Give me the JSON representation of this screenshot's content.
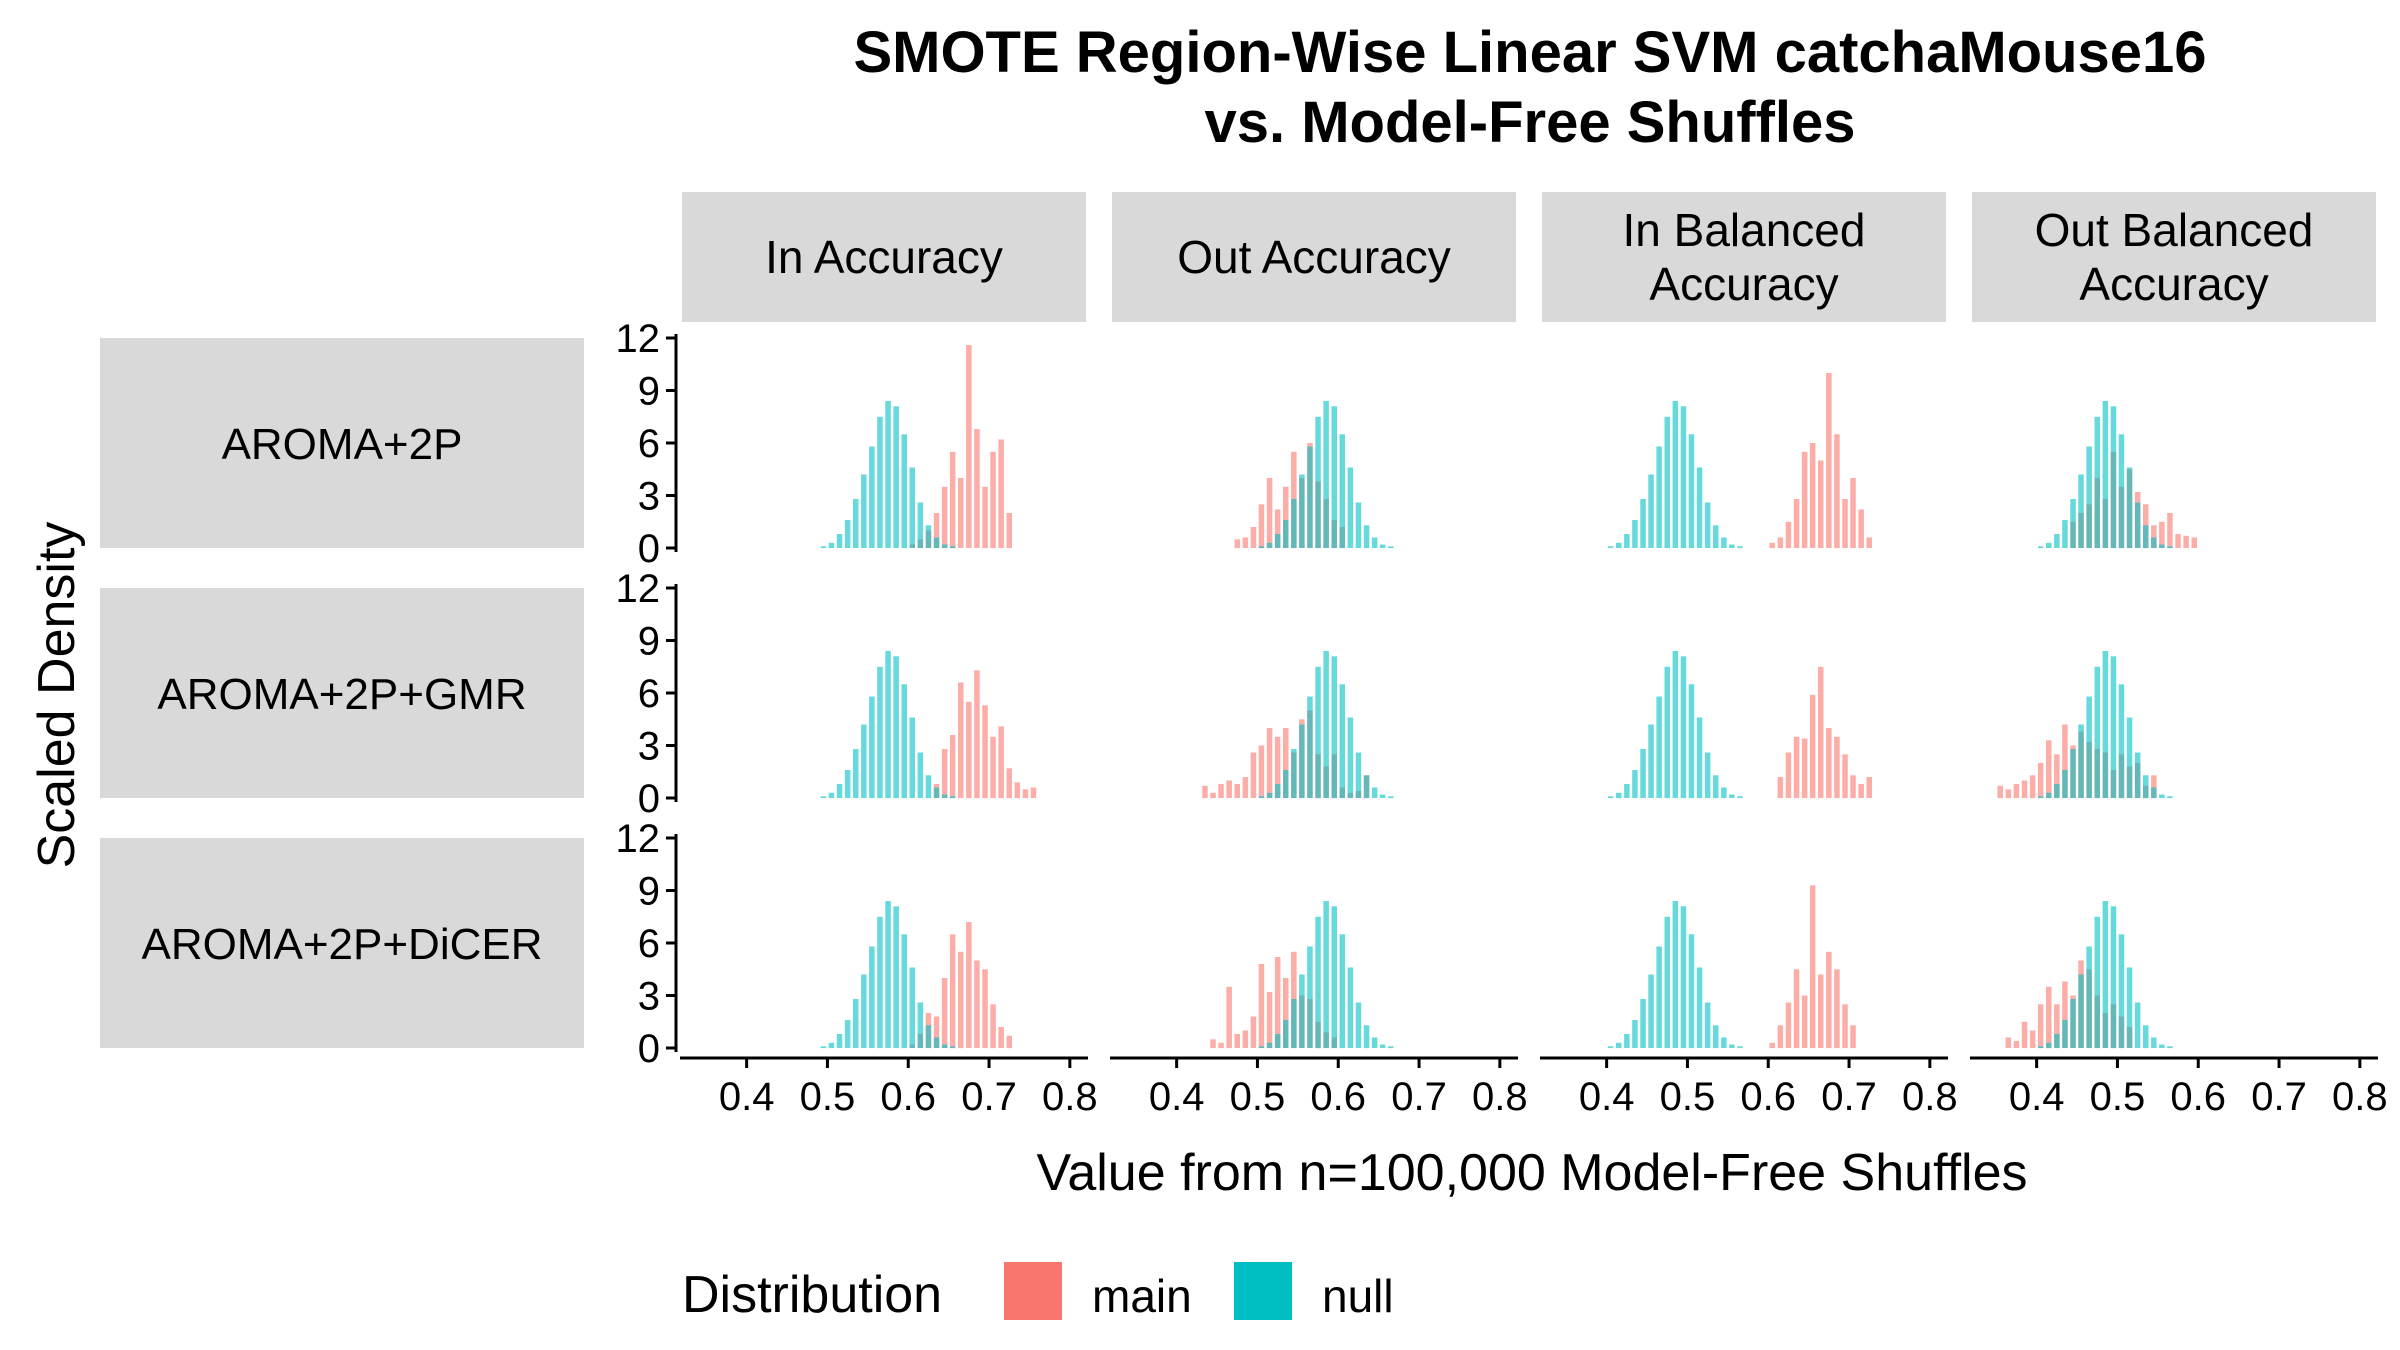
{
  "chart_data": {
    "type": "histogram-facet-grid",
    "title_lines": [
      "SMOTE Region-Wise Linear SVM catchaMouse16",
      "vs. Model-Free Shuffles"
    ],
    "xlabel": "Value from n=100,000 Model-Free Shuffles",
    "ylabel": "Scaled Density",
    "xlim": [
      0.32,
      0.82
    ],
    "ylim": [
      0,
      12
    ],
    "x_ticks": [
      "0.4",
      "0.5",
      "0.6",
      "0.7",
      "0.8"
    ],
    "y_ticks": [
      "0",
      "3",
      "6",
      "9",
      "12"
    ],
    "bin_width": 0.01,
    "columns": [
      "In Accuracy",
      "Out Accuracy",
      "In Balanced\nAccuracy",
      "Out Balanced\nAccuracy"
    ],
    "rows": [
      "AROMA+2P",
      "AROMA+2P+GMR",
      "AROMA+2P+DiCER"
    ],
    "legend": {
      "title": "Distribution",
      "items": [
        {
          "label": "main",
          "color": "#F8766D"
        },
        {
          "label": "null",
          "color": "#00BFC4"
        }
      ]
    },
    "panels": [
      [
        {
          "null": {
            "start": 0.49,
            "values": [
              0.1,
              0.3,
              0.8,
              1.6,
              2.8,
              4.2,
              5.8,
              7.5,
              8.4,
              8.1,
              6.5,
              4.6,
              2.6,
              1.3,
              0.6,
              0.2,
              0.1
            ]
          },
          "main": {
            "start": 0.6,
            "values": [
              0.2,
              0.5,
              1.0,
              2.0,
              3.5,
              5.5,
              4.0,
              11.6,
              6.8,
              3.5,
              5.5,
              6.2,
              2.0
            ]
          }
        },
        {
          "null": {
            "start": 0.5,
            "values": [
              0.1,
              0.3,
              0.8,
              1.6,
              2.8,
              4.2,
              5.8,
              7.5,
              8.4,
              8.1,
              6.5,
              4.6,
              2.6,
              1.3,
              0.6,
              0.2,
              0.1
            ]
          },
          "main": {
            "start": 0.47,
            "values": [
              0.5,
              0.6,
              1.2,
              2.5,
              4.0,
              2.2,
              3.5,
              5.5,
              4.0,
              6.0,
              3.8,
              2.8,
              1.6,
              1.2
            ]
          }
        },
        {
          "null": {
            "start": 0.4,
            "values": [
              0.1,
              0.3,
              0.8,
              1.6,
              2.8,
              4.2,
              5.8,
              7.5,
              8.4,
              8.1,
              6.5,
              4.6,
              2.6,
              1.3,
              0.6,
              0.2,
              0.1
            ]
          },
          "main": {
            "start": 0.6,
            "values": [
              0.3,
              0.6,
              1.5,
              2.8,
              5.5,
              6.0,
              5.0,
              10.0,
              6.5,
              2.8,
              4.0,
              2.2,
              0.6
            ]
          }
        },
        {
          "null": {
            "start": 0.4,
            "values": [
              0.1,
              0.3,
              0.8,
              1.6,
              2.8,
              4.2,
              5.8,
              7.5,
              8.4,
              8.1,
              6.5,
              4.6,
              2.6,
              1.3,
              0.6,
              0.2,
              0.1
            ]
          },
          "main": {
            "start": 0.44,
            "values": [
              1.5,
              2.0,
              2.5,
              4.0,
              2.8,
              5.5,
              3.5,
              4.5,
              3.2,
              2.5,
              1.3,
              1.5,
              2.0,
              0.8,
              0.7,
              0.6
            ]
          }
        }
      ],
      [
        {
          "null": {
            "start": 0.49,
            "values": [
              0.1,
              0.3,
              0.8,
              1.6,
              2.8,
              4.2,
              5.8,
              7.5,
              8.4,
              8.1,
              6.5,
              4.6,
              2.6,
              1.3,
              0.6,
              0.2,
              0.1
            ]
          },
          "main": {
            "start": 0.63,
            "values": [
              0.8,
              2.8,
              3.6,
              6.6,
              5.5,
              7.3,
              5.3,
              3.5,
              4.1,
              1.7,
              0.9,
              0.5,
              0.6
            ]
          }
        },
        {
          "null": {
            "start": 0.5,
            "values": [
              0.1,
              0.3,
              0.8,
              1.6,
              2.8,
              4.2,
              5.8,
              7.5,
              8.4,
              8.1,
              6.5,
              4.6,
              2.6,
              1.3,
              0.6,
              0.2,
              0.1
            ]
          },
          "main": {
            "start": 0.43,
            "values": [
              0.7,
              0.3,
              0.8,
              1.0,
              0.8,
              1.2,
              2.6,
              3.0,
              4.0,
              3.5,
              4.0,
              2.6,
              4.5,
              5.0,
              2.5,
              1.8,
              2.5,
              0.6,
              0.3,
              0.4,
              1.3
            ]
          }
        },
        {
          "null": {
            "start": 0.4,
            "values": [
              0.1,
              0.3,
              0.8,
              1.6,
              2.8,
              4.2,
              5.8,
              7.5,
              8.4,
              8.1,
              6.5,
              4.6,
              2.6,
              1.3,
              0.6,
              0.2,
              0.1
            ]
          },
          "main": {
            "start": 0.61,
            "values": [
              1.2,
              2.6,
              3.5,
              3.4,
              5.9,
              7.5,
              4.0,
              3.5,
              2.5,
              1.3,
              0.8,
              1.2
            ]
          }
        },
        {
          "null": {
            "start": 0.4,
            "values": [
              0.1,
              0.3,
              0.8,
              1.6,
              2.8,
              4.2,
              5.8,
              7.5,
              8.4,
              8.1,
              6.5,
              4.6,
              2.6,
              1.3,
              0.6,
              0.2,
              0.1
            ]
          },
          "main": {
            "start": 0.35,
            "values": [
              0.7,
              0.5,
              0.8,
              1.0,
              1.3,
              2.0,
              3.3,
              2.5,
              4.2,
              3.0,
              3.8,
              3.2,
              2.8,
              2.6,
              1.6,
              2.5,
              1.8,
              2.0,
              0.7,
              1.3
            ]
          }
        }
      ],
      [
        {
          "null": {
            "start": 0.49,
            "values": [
              0.1,
              0.3,
              0.8,
              1.6,
              2.8,
              4.2,
              5.8,
              7.5,
              8.4,
              8.1,
              6.5,
              4.6,
              2.6,
              1.3,
              0.6,
              0.2,
              0.1
            ]
          },
          "main": {
            "start": 0.6,
            "values": [
              0.2,
              0.8,
              2.0,
              1.8,
              4.0,
              6.5,
              5.5,
              7.2,
              5.0,
              4.5,
              2.5,
              1.2,
              0.7
            ]
          }
        },
        {
          "null": {
            "start": 0.5,
            "values": [
              0.1,
              0.3,
              0.8,
              1.6,
              2.8,
              4.2,
              5.8,
              7.5,
              8.4,
              8.1,
              6.5,
              4.6,
              2.6,
              1.3,
              0.6,
              0.2,
              0.1
            ]
          },
          "main": {
            "start": 0.44,
            "values": [
              0.5,
              0.3,
              3.5,
              0.8,
              1.0,
              1.8,
              4.8,
              3.2,
              5.2,
              4.0,
              5.5,
              3.0,
              2.8,
              1.5,
              0.9,
              0.6
            ]
          }
        },
        {
          "null": {
            "start": 0.4,
            "values": [
              0.1,
              0.3,
              0.8,
              1.6,
              2.8,
              4.2,
              5.8,
              7.5,
              8.4,
              8.1,
              6.5,
              4.6,
              2.6,
              1.3,
              0.6,
              0.2,
              0.1
            ]
          },
          "main": {
            "start": 0.6,
            "values": [
              0.3,
              1.3,
              2.6,
              4.5,
              3.0,
              9.3,
              4.2,
              5.5,
              4.5,
              2.5,
              1.3
            ]
          }
        },
        {
          "null": {
            "start": 0.4,
            "values": [
              0.1,
              0.3,
              0.8,
              1.6,
              2.8,
              4.2,
              5.8,
              7.5,
              8.4,
              8.1,
              6.5,
              4.6,
              2.6,
              1.3,
              0.6,
              0.2,
              0.1
            ]
          },
          "main": {
            "start": 0.36,
            "values": [
              0.6,
              0.4,
              1.5,
              1.0,
              2.5,
              3.5,
              2.5,
              3.8,
              3.0,
              5.0,
              4.5,
              3.0,
              2.0,
              2.5,
              1.8,
              1.2
            ]
          }
        }
      ]
    ]
  }
}
